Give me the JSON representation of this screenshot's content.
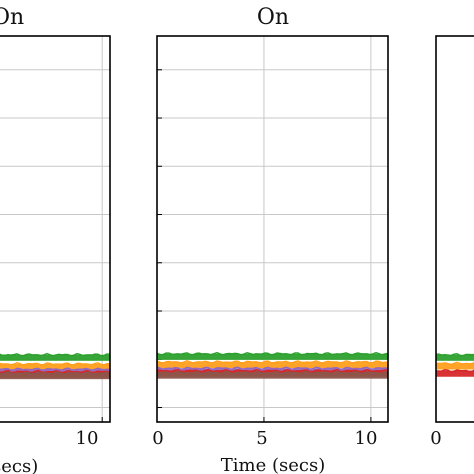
{
  "chart_data": [
    {
      "type": "line",
      "title": "On",
      "xlabel": "Time (secs)",
      "ylabel": "",
      "xlim": [
        -1.5,
        10.8
      ],
      "ylim": [
        0,
        8
      ],
      "xticks": [
        10
      ],
      "yticks": [
        0.3,
        1.3,
        2.3,
        3.3,
        4.3,
        5.3,
        6.3,
        7.3
      ],
      "grid": true,
      "series": [
        {
          "color": "#2ca02c",
          "x": [
            -1.5,
            10.8
          ],
          "y": [
            1.33,
            1.33
          ]
        },
        {
          "color": "#ff9f1c",
          "x": [
            -1.5,
            10.8
          ],
          "y": [
            1.14,
            1.14
          ]
        },
        {
          "color": "#9467bd",
          "x": [
            -1.5,
            10.8
          ],
          "y": [
            1.03,
            1.03
          ]
        },
        {
          "color": "#d62728",
          "x": [
            -1.5,
            10.8
          ],
          "y": [
            0.98,
            0.98
          ]
        },
        {
          "color": "#8c564b",
          "x": [
            -1.5,
            10.8
          ],
          "y": [
            0.95,
            0.95
          ]
        }
      ]
    },
    {
      "type": "line",
      "title": "On",
      "xlabel": "Time (secs)",
      "ylabel": "",
      "xlim": [
        0,
        10.8
      ],
      "ylim": [
        0,
        8
      ],
      "xticks": [
        0,
        5,
        10
      ],
      "yticks": [
        0.3,
        1.3,
        2.3,
        3.3,
        4.3,
        5.3,
        6.3,
        7.3
      ],
      "grid": true,
      "series": [
        {
          "color": "#2ca02c",
          "x": [
            0,
            10.8
          ],
          "y": [
            1.35,
            1.35
          ]
        },
        {
          "color": "#ff9f1c",
          "x": [
            0,
            10.8
          ],
          "y": [
            1.18,
            1.18
          ]
        },
        {
          "color": "#9467bd",
          "x": [
            0,
            10.8
          ],
          "y": [
            1.05,
            1.05
          ]
        },
        {
          "color": "#d62728",
          "x": [
            0,
            10.8
          ],
          "y": [
            1.0,
            1.0
          ]
        },
        {
          "color": "#8c564b",
          "x": [
            0,
            10.8
          ],
          "y": [
            0.96,
            0.96
          ]
        }
      ]
    },
    {
      "type": "line",
      "title": "",
      "xlabel": "",
      "ylabel": "",
      "xlim": [
        0,
        10.8
      ],
      "ylim": [
        0,
        8
      ],
      "xticks": [
        0
      ],
      "yticks": [],
      "grid": true,
      "series": [
        {
          "color": "#2ca02c",
          "x": [
            0,
            10.8
          ],
          "y": [
            1.33,
            1.33
          ]
        },
        {
          "color": "#ff9f1c",
          "x": [
            0,
            10.8
          ],
          "y": [
            1.15,
            1.15
          ]
        },
        {
          "color": "#d62728",
          "x": [
            0,
            10.8
          ],
          "y": [
            1.0,
            1.0
          ]
        }
      ]
    }
  ],
  "tick_text": {
    "p1_x10": "10",
    "p2_x0": "0",
    "p2_x5": "5",
    "p2_x10": "10",
    "p3_x0": "0"
  },
  "partial_labels": {
    "left_title": "On",
    "left_xlabel": "secs)",
    "mid_title": "On",
    "mid_xlabel": "Time (secs)"
  }
}
